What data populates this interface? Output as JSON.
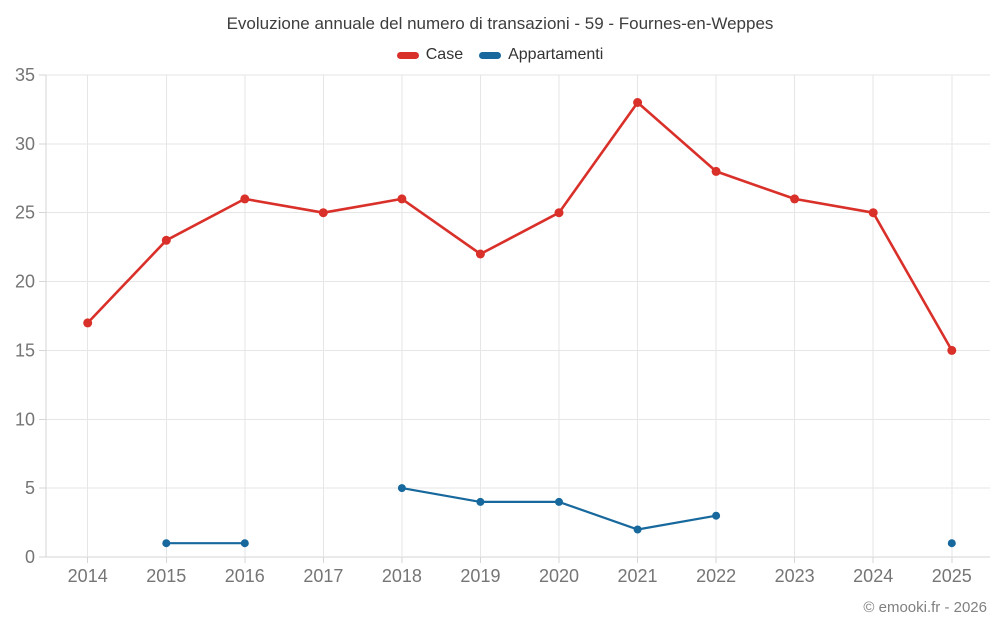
{
  "header": {
    "title": "Evoluzione annuale del numero di transazioni - 59 - Fournes-en-Weppes"
  },
  "footer": {
    "copyright": "© emooki.fr - 2026"
  },
  "colors": {
    "case_red": "#d9302a",
    "appartamenti_blue": "#17689d",
    "grid": "#e6e6e6",
    "axis": "#d6d6d6",
    "tick_label": "#757575",
    "title_text": "#3d3d3d",
    "legend_text": "#333333",
    "copyright_text": "#808080"
  },
  "chart_data": {
    "type": "line",
    "title": "Evoluzione annuale del numero di transazioni - 59 - Fournes-en-Weppes",
    "categories": [
      "2014",
      "2015",
      "2016",
      "2017",
      "2018",
      "2019",
      "2020",
      "2021",
      "2022",
      "2023",
      "2024",
      "2025"
    ],
    "series": [
      {
        "name": "Case",
        "color": "#d9302a",
        "values": [
          17,
          23,
          26,
          25,
          26,
          22,
          25,
          33,
          28,
          26,
          25,
          15
        ]
      },
      {
        "name": "Appartamenti",
        "color": "#17689d",
        "values": [
          null,
          1,
          1,
          null,
          5,
          4,
          4,
          2,
          3,
          null,
          null,
          1
        ]
      }
    ],
    "xlabel": "",
    "ylabel": "",
    "ylim": [
      0,
      35
    ],
    "ytick_step": 5,
    "grid": true,
    "legend_position": "top",
    "gaps_break_line": true
  }
}
